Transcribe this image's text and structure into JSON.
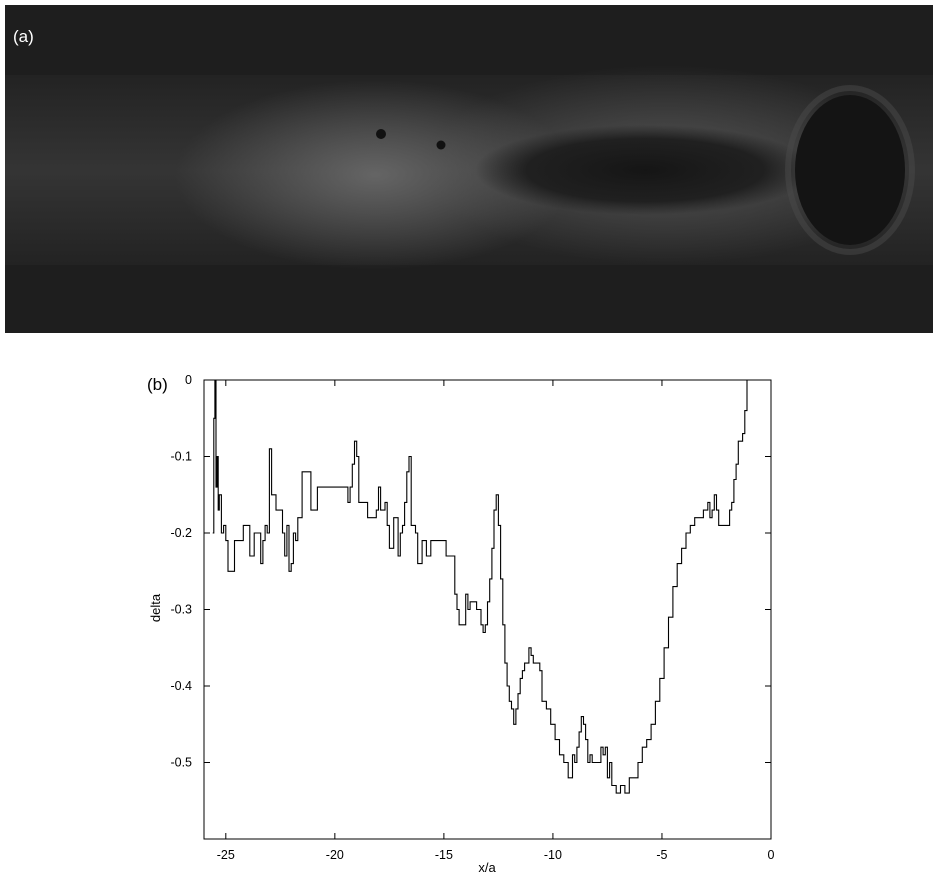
{
  "panel_a": {
    "label": "(a)"
  },
  "panel_b": {
    "label": "(b)"
  },
  "colors": {
    "line": "#000000",
    "photo_background": "#1e1e1e"
  },
  "chart_data": {
    "type": "line",
    "xlabel": "x/a",
    "ylabel": "delta",
    "xlim": [
      -26,
      0
    ],
    "ylim": [
      -0.6,
      0
    ],
    "xticks": [
      -25,
      -20,
      -15,
      -10,
      -5,
      0
    ],
    "yticks": [
      0,
      -0.1,
      -0.2,
      -0.3,
      -0.4,
      -0.5
    ],
    "grid": false,
    "series": [
      {
        "points": [
          [
            -25.6,
            -0.2
          ],
          [
            -25.55,
            -0.05
          ],
          [
            -25.5,
            0.0
          ],
          [
            -25.45,
            -0.14
          ],
          [
            -25.4,
            -0.1
          ],
          [
            -25.35,
            -0.17
          ],
          [
            -25.3,
            -0.15
          ],
          [
            -25.2,
            -0.2
          ],
          [
            -25.1,
            -0.19
          ],
          [
            -25.0,
            -0.21
          ],
          [
            -24.9,
            -0.25
          ],
          [
            -24.7,
            -0.25
          ],
          [
            -24.6,
            -0.21
          ],
          [
            -24.3,
            -0.21
          ],
          [
            -24.2,
            -0.19
          ],
          [
            -24.0,
            -0.19
          ],
          [
            -23.9,
            -0.23
          ],
          [
            -23.7,
            -0.2
          ],
          [
            -23.5,
            -0.2
          ],
          [
            -23.4,
            -0.24
          ],
          [
            -23.3,
            -0.21
          ],
          [
            -23.2,
            -0.19
          ],
          [
            -23.1,
            -0.2
          ],
          [
            -23.0,
            -0.09
          ],
          [
            -22.9,
            -0.15
          ],
          [
            -22.8,
            -0.15
          ],
          [
            -22.7,
            -0.17
          ],
          [
            -22.5,
            -0.17
          ],
          [
            -22.4,
            -0.2
          ],
          [
            -22.3,
            -0.23
          ],
          [
            -22.2,
            -0.19
          ],
          [
            -22.1,
            -0.25
          ],
          [
            -22.0,
            -0.24
          ],
          [
            -21.9,
            -0.2
          ],
          [
            -21.8,
            -0.21
          ],
          [
            -21.7,
            -0.18
          ],
          [
            -21.6,
            -0.18
          ],
          [
            -21.5,
            -0.12
          ],
          [
            -21.2,
            -0.12
          ],
          [
            -21.1,
            -0.17
          ],
          [
            -20.9,
            -0.17
          ],
          [
            -20.8,
            -0.14
          ],
          [
            -19.5,
            -0.14
          ],
          [
            -19.4,
            -0.16
          ],
          [
            -19.3,
            -0.14
          ],
          [
            -19.2,
            -0.11
          ],
          [
            -19.1,
            -0.08
          ],
          [
            -19.0,
            -0.1
          ],
          [
            -18.9,
            -0.16
          ],
          [
            -18.7,
            -0.16
          ],
          [
            -18.5,
            -0.18
          ],
          [
            -18.2,
            -0.18
          ],
          [
            -18.1,
            -0.17
          ],
          [
            -18.0,
            -0.14
          ],
          [
            -17.9,
            -0.17
          ],
          [
            -17.7,
            -0.16
          ],
          [
            -17.6,
            -0.19
          ],
          [
            -17.5,
            -0.22
          ],
          [
            -17.3,
            -0.18
          ],
          [
            -17.1,
            -0.23
          ],
          [
            -17.0,
            -0.2
          ],
          [
            -16.9,
            -0.19
          ],
          [
            -16.8,
            -0.16
          ],
          [
            -16.7,
            -0.12
          ],
          [
            -16.6,
            -0.1
          ],
          [
            -16.5,
            -0.19
          ],
          [
            -16.3,
            -0.2
          ],
          [
            -16.2,
            -0.24
          ],
          [
            -16.0,
            -0.21
          ],
          [
            -15.8,
            -0.23
          ],
          [
            -15.6,
            -0.21
          ],
          [
            -15.0,
            -0.21
          ],
          [
            -14.9,
            -0.23
          ],
          [
            -14.6,
            -0.23
          ],
          [
            -14.5,
            -0.28
          ],
          [
            -14.4,
            -0.3
          ],
          [
            -14.3,
            -0.32
          ],
          [
            -14.1,
            -0.32
          ],
          [
            -14.0,
            -0.28
          ],
          [
            -13.9,
            -0.3
          ],
          [
            -13.8,
            -0.29
          ],
          [
            -13.6,
            -0.29
          ],
          [
            -13.5,
            -0.3
          ],
          [
            -13.3,
            -0.32
          ],
          [
            -13.2,
            -0.33
          ],
          [
            -13.1,
            -0.32
          ],
          [
            -13.0,
            -0.29
          ],
          [
            -12.9,
            -0.26
          ],
          [
            -12.8,
            -0.22
          ],
          [
            -12.7,
            -0.17
          ],
          [
            -12.6,
            -0.15
          ],
          [
            -12.5,
            -0.19
          ],
          [
            -12.4,
            -0.26
          ],
          [
            -12.3,
            -0.32
          ],
          [
            -12.2,
            -0.37
          ],
          [
            -12.1,
            -0.4
          ],
          [
            -12.0,
            -0.42
          ],
          [
            -11.9,
            -0.43
          ],
          [
            -11.8,
            -0.45
          ],
          [
            -11.7,
            -0.43
          ],
          [
            -11.6,
            -0.41
          ],
          [
            -11.5,
            -0.39
          ],
          [
            -11.4,
            -0.38
          ],
          [
            -11.3,
            -0.37
          ],
          [
            -11.2,
            -0.37
          ],
          [
            -11.1,
            -0.35
          ],
          [
            -11.0,
            -0.36
          ],
          [
            -10.9,
            -0.37
          ],
          [
            -10.7,
            -0.37
          ],
          [
            -10.6,
            -0.38
          ],
          [
            -10.5,
            -0.42
          ],
          [
            -10.3,
            -0.43
          ],
          [
            -10.1,
            -0.45
          ],
          [
            -9.9,
            -0.47
          ],
          [
            -9.7,
            -0.49
          ],
          [
            -9.5,
            -0.5
          ],
          [
            -9.3,
            -0.52
          ],
          [
            -9.1,
            -0.49
          ],
          [
            -9.0,
            -0.5
          ],
          [
            -8.9,
            -0.48
          ],
          [
            -8.8,
            -0.46
          ],
          [
            -8.7,
            -0.44
          ],
          [
            -8.6,
            -0.45
          ],
          [
            -8.5,
            -0.47
          ],
          [
            -8.4,
            -0.5
          ],
          [
            -8.3,
            -0.49
          ],
          [
            -8.2,
            -0.5
          ],
          [
            -7.9,
            -0.5
          ],
          [
            -7.8,
            -0.48
          ],
          [
            -7.7,
            -0.49
          ],
          [
            -7.6,
            -0.48
          ],
          [
            -7.5,
            -0.52
          ],
          [
            -7.4,
            -0.5
          ],
          [
            -7.3,
            -0.53
          ],
          [
            -7.1,
            -0.54
          ],
          [
            -6.9,
            -0.53
          ],
          [
            -6.7,
            -0.54
          ],
          [
            -6.5,
            -0.52
          ],
          [
            -6.3,
            -0.52
          ],
          [
            -6.1,
            -0.5
          ],
          [
            -5.9,
            -0.48
          ],
          [
            -5.7,
            -0.47
          ],
          [
            -5.5,
            -0.45
          ],
          [
            -5.3,
            -0.42
          ],
          [
            -5.1,
            -0.39
          ],
          [
            -4.9,
            -0.35
          ],
          [
            -4.7,
            -0.31
          ],
          [
            -4.5,
            -0.27
          ],
          [
            -4.3,
            -0.24
          ],
          [
            -4.1,
            -0.22
          ],
          [
            -3.9,
            -0.2
          ],
          [
            -3.7,
            -0.19
          ],
          [
            -3.5,
            -0.18
          ],
          [
            -3.3,
            -0.18
          ],
          [
            -3.1,
            -0.17
          ],
          [
            -2.9,
            -0.16
          ],
          [
            -2.8,
            -0.18
          ],
          [
            -2.7,
            -0.17
          ],
          [
            -2.6,
            -0.15
          ],
          [
            -2.5,
            -0.17
          ],
          [
            -2.4,
            -0.19
          ],
          [
            -2.0,
            -0.19
          ],
          [
            -1.9,
            -0.17
          ],
          [
            -1.8,
            -0.16
          ],
          [
            -1.7,
            -0.13
          ],
          [
            -1.6,
            -0.11
          ],
          [
            -1.5,
            -0.08
          ],
          [
            -1.3,
            -0.07
          ],
          [
            -1.2,
            -0.04
          ],
          [
            -1.1,
            0.0
          ]
        ]
      }
    ]
  }
}
